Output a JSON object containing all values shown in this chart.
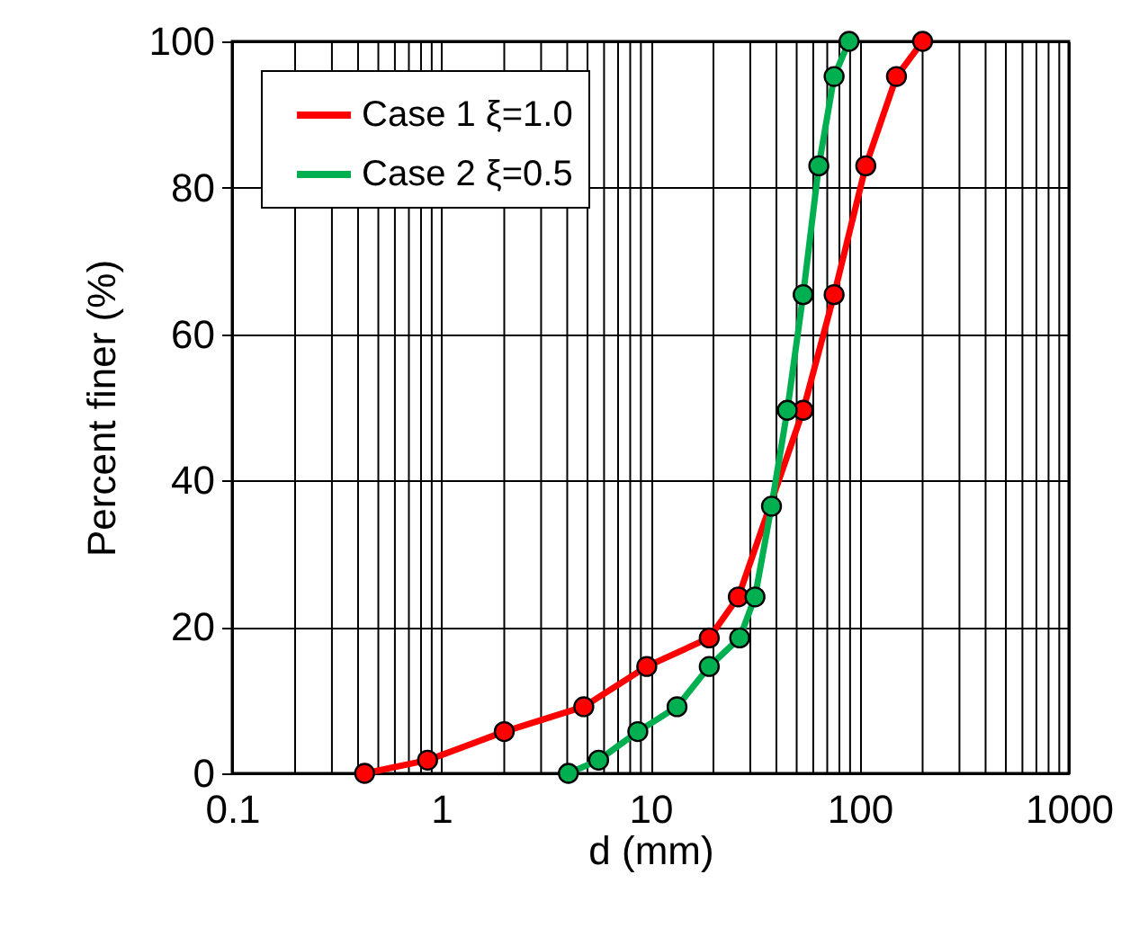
{
  "chart_data": {
    "type": "line",
    "xlabel": "d (mm)",
    "ylabel": "Percent finer (%)",
    "log": "x",
    "xlim": [
      0.1,
      1000
    ],
    "xticks": [
      0.1,
      1,
      10,
      100,
      1000
    ],
    "ylim": [
      0,
      100
    ],
    "yticks": [
      0,
      20,
      40,
      60,
      80,
      100
    ],
    "grid": true,
    "legend": "top left",
    "marker": "circle",
    "line_style": "solid",
    "series": [
      {
        "name": "Case 1 ξ=1.0",
        "color": "#ff0000",
        "x": [
          0.43,
          0.86,
          2.0,
          4.8,
          9.6,
          19.1,
          26.3,
          53.7,
          75.5,
          107,
          150,
          200
        ],
        "values": [
          0,
          1.8,
          5.7,
          9.1,
          14.6,
          18.5,
          24.1,
          49.6,
          65.4,
          83.0,
          95.2,
          100
        ]
      },
      {
        "name": "Case 2 ξ=0.5",
        "color": "#00b050",
        "x": [
          4.05,
          5.65,
          8.7,
          13.4,
          19.1,
          26.7,
          31.6,
          37.9,
          45.1,
          53.7,
          63.8,
          75.5,
          89
        ],
        "values": [
          0,
          1.8,
          5.7,
          9.1,
          14.6,
          18.5,
          24.1,
          36.5,
          49.6,
          65.4,
          83.0,
          95.2,
          100
        ]
      }
    ]
  }
}
